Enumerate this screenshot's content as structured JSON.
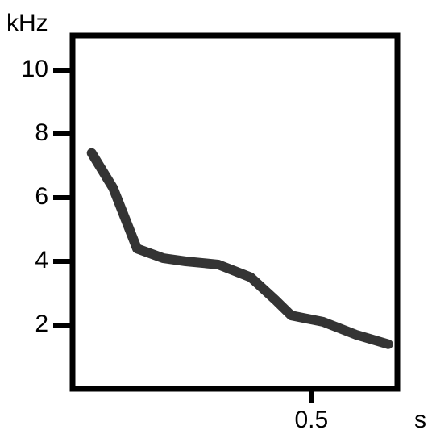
{
  "chart_data": {
    "type": "line",
    "y_label": "kHz",
    "x_label": "s",
    "x": [
      0.04,
      0.085,
      0.135,
      0.19,
      0.237,
      0.305,
      0.373,
      0.424,
      0.458,
      0.525,
      0.593,
      0.661
    ],
    "series": [
      {
        "color": "#111111",
        "values": [
          7.4,
          6.3,
          4.4,
          4.1,
          4.0,
          3.9,
          3.5,
          2.8,
          2.3,
          2.1,
          1.7,
          1.4
        ]
      }
    ],
    "xlim": [
      0,
      0.68
    ],
    "ylim": [
      0,
      11
    ],
    "xticks": [
      0.5
    ],
    "yticks": [
      2,
      4,
      6,
      8,
      10
    ]
  }
}
